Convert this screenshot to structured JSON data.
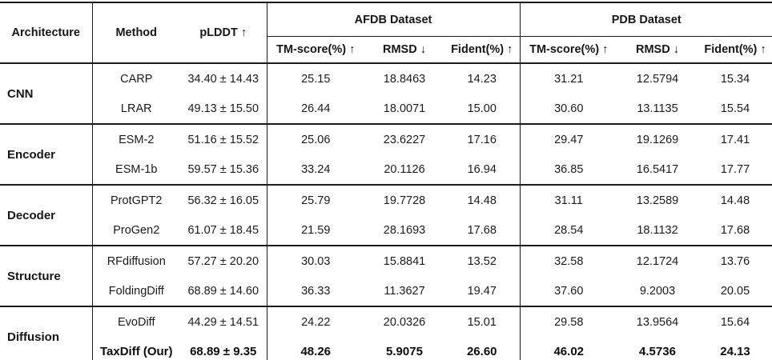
{
  "table": {
    "headers": {
      "architecture": "Architecture",
      "method": "Method",
      "plddt": "pLDDT ↑",
      "afdb": "AFDB Dataset",
      "pdb": "PDB Dataset",
      "tm_score": "TM-score(%) ↑",
      "rmsd": "RMSD ↓",
      "fident": "Fident(%) ↑"
    },
    "groups": [
      {
        "label": "CNN",
        "rows": [
          {
            "method": "CARP",
            "plddt": "34.40 ± 14.43",
            "afdb_tm": "25.15",
            "afdb_rmsd": "18.8463",
            "afdb_fident": "14.23",
            "pdb_tm": "31.21",
            "pdb_rmsd": "12.5794",
            "pdb_fident": "15.34"
          },
          {
            "method": "LRAR",
            "plddt": "49.13 ± 15.50",
            "afdb_tm": "26.44",
            "afdb_rmsd": "18.0071",
            "afdb_fident": "15.00",
            "pdb_tm": "30.60",
            "pdb_rmsd": "13.1135",
            "pdb_fident": "15.54"
          }
        ]
      },
      {
        "label": "Encoder",
        "rows": [
          {
            "method": "ESM-2",
            "plddt": "51.16 ± 15.52",
            "afdb_tm": "25.06",
            "afdb_rmsd": "23.6227",
            "afdb_fident": "17.16",
            "pdb_tm": "29.47",
            "pdb_rmsd": "19.1269",
            "pdb_fident": "17.41"
          },
          {
            "method": "ESM-1b",
            "plddt": "59.57 ± 15.36",
            "afdb_tm": "33.24",
            "afdb_rmsd": "20.1126",
            "afdb_fident": "16.94",
            "pdb_tm": "36.85",
            "pdb_rmsd": "16.5417",
            "pdb_fident": "17.77"
          }
        ]
      },
      {
        "label": "Decoder",
        "rows": [
          {
            "method": "ProtGPT2",
            "plddt": "56.32 ± 16.05",
            "afdb_tm": "25.79",
            "afdb_rmsd": "19.7728",
            "afdb_fident": "14.48",
            "pdb_tm": "31.11",
            "pdb_rmsd": "13.2589",
            "pdb_fident": "14.48"
          },
          {
            "method": "ProGen2",
            "plddt": "61.07 ± 18.45",
            "afdb_tm": "21.59",
            "afdb_rmsd": "28.1693",
            "afdb_fident": "17.68",
            "pdb_tm": "28.54",
            "pdb_rmsd": "18.1132",
            "pdb_fident": "17.68"
          }
        ]
      },
      {
        "label": "Structure",
        "rows": [
          {
            "method": "RFdiffusion",
            "plddt": "57.27 ± 20.20",
            "afdb_tm": "30.03",
            "afdb_rmsd": "15.8841",
            "afdb_fident": "13.52",
            "pdb_tm": "32.58",
            "pdb_rmsd": "12.1724",
            "pdb_fident": "13.76"
          },
          {
            "method": "FoldingDiff",
            "plddt": "68.89 ± 14.60",
            "afdb_tm": "36.33",
            "afdb_rmsd": "11.3627",
            "afdb_fident": "19.47",
            "pdb_tm": "37.60",
            "pdb_rmsd": "9.2003",
            "pdb_fident": "20.05"
          }
        ]
      },
      {
        "label": "Diffusion",
        "rows": [
          {
            "method": "EvoDiff",
            "plddt": "44.29 ± 14.51",
            "afdb_tm": "24.22",
            "afdb_rmsd": "20.0326",
            "afdb_fident": "15.01",
            "pdb_tm": "29.58",
            "pdb_rmsd": "13.9564",
            "pdb_fident": "15.64"
          },
          {
            "method": "TaxDiff (Our)",
            "plddt": "68.89 ± 9.35",
            "afdb_tm": "48.26",
            "afdb_rmsd": "5.9075",
            "afdb_fident": "26.60",
            "pdb_tm": "46.02",
            "pdb_rmsd": "4.5736",
            "pdb_fident": "24.13"
          }
        ]
      }
    ]
  }
}
